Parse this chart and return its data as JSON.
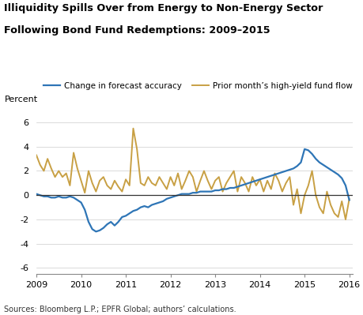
{
  "title_line1": "Illiquidity Spills Over from Energy to Non-Energy Sector",
  "title_line2": "Following Bond Fund Redemptions: 2009–2015",
  "ylabel": "Percent",
  "source": "Sources: Bloomberg L.P.; EPFR Global; authors’ calculations.",
  "legend": [
    "Change in forecast accuracy",
    "Prior month’s high-yield fund flow"
  ],
  "colors": [
    "#2e75b6",
    "#c8a044"
  ],
  "xlim": [
    2009.0,
    2016.08
  ],
  "ylim": [
    -6.5,
    7.0
  ],
  "yticks": [
    -6,
    -4,
    -2,
    0,
    2,
    4,
    6
  ],
  "xticks": [
    2009,
    2010,
    2011,
    2012,
    2013,
    2014,
    2015,
    2016
  ],
  "blue_x": [
    2009.0,
    2009.083,
    2009.167,
    2009.25,
    2009.333,
    2009.417,
    2009.5,
    2009.583,
    2009.667,
    2009.75,
    2009.833,
    2009.917,
    2010.0,
    2010.083,
    2010.167,
    2010.25,
    2010.333,
    2010.417,
    2010.5,
    2010.583,
    2010.667,
    2010.75,
    2010.833,
    2010.917,
    2011.0,
    2011.083,
    2011.167,
    2011.25,
    2011.333,
    2011.417,
    2011.5,
    2011.583,
    2011.667,
    2011.75,
    2011.833,
    2011.917,
    2012.0,
    2012.083,
    2012.167,
    2012.25,
    2012.333,
    2012.417,
    2012.5,
    2012.583,
    2012.667,
    2012.75,
    2012.833,
    2012.917,
    2013.0,
    2013.083,
    2013.167,
    2013.25,
    2013.333,
    2013.417,
    2013.5,
    2013.583,
    2013.667,
    2013.75,
    2013.833,
    2013.917,
    2014.0,
    2014.083,
    2014.167,
    2014.25,
    2014.333,
    2014.417,
    2014.5,
    2014.583,
    2014.667,
    2014.75,
    2014.833,
    2014.917,
    2015.0,
    2015.083,
    2015.167,
    2015.25,
    2015.333,
    2015.417,
    2015.5,
    2015.583,
    2015.667,
    2015.75,
    2015.833,
    2015.917,
    2016.0
  ],
  "blue_y": [
    0.1,
    0.0,
    -0.1,
    -0.1,
    -0.2,
    -0.2,
    -0.1,
    -0.2,
    -0.2,
    -0.1,
    -0.2,
    -0.4,
    -0.6,
    -1.2,
    -2.2,
    -2.8,
    -3.0,
    -2.9,
    -2.7,
    -2.4,
    -2.2,
    -2.5,
    -2.2,
    -1.8,
    -1.7,
    -1.5,
    -1.3,
    -1.2,
    -1.0,
    -0.9,
    -1.0,
    -0.8,
    -0.7,
    -0.6,
    -0.5,
    -0.3,
    -0.2,
    -0.1,
    0.0,
    0.1,
    0.1,
    0.1,
    0.2,
    0.2,
    0.3,
    0.3,
    0.3,
    0.3,
    0.4,
    0.4,
    0.5,
    0.5,
    0.6,
    0.6,
    0.7,
    0.8,
    0.9,
    1.0,
    1.1,
    1.2,
    1.3,
    1.4,
    1.5,
    1.6,
    1.7,
    1.8,
    1.9,
    2.0,
    2.1,
    2.2,
    2.4,
    2.7,
    3.8,
    3.7,
    3.4,
    3.0,
    2.7,
    2.5,
    2.3,
    2.1,
    1.9,
    1.7,
    1.4,
    0.8,
    -0.4
  ],
  "gold_x": [
    2009.0,
    2009.083,
    2009.167,
    2009.25,
    2009.333,
    2009.417,
    2009.5,
    2009.583,
    2009.667,
    2009.75,
    2009.833,
    2009.917,
    2010.0,
    2010.083,
    2010.167,
    2010.25,
    2010.333,
    2010.417,
    2010.5,
    2010.583,
    2010.667,
    2010.75,
    2010.833,
    2010.917,
    2011.0,
    2011.083,
    2011.167,
    2011.25,
    2011.333,
    2011.417,
    2011.5,
    2011.583,
    2011.667,
    2011.75,
    2011.833,
    2011.917,
    2012.0,
    2012.083,
    2012.167,
    2012.25,
    2012.333,
    2012.417,
    2012.5,
    2012.583,
    2012.667,
    2012.75,
    2012.833,
    2012.917,
    2013.0,
    2013.083,
    2013.167,
    2013.25,
    2013.333,
    2013.417,
    2013.5,
    2013.583,
    2013.667,
    2013.75,
    2013.833,
    2013.917,
    2014.0,
    2014.083,
    2014.167,
    2014.25,
    2014.333,
    2014.417,
    2014.5,
    2014.583,
    2014.667,
    2014.75,
    2014.833,
    2014.917,
    2015.0,
    2015.083,
    2015.167,
    2015.25,
    2015.333,
    2015.417,
    2015.5,
    2015.583,
    2015.667,
    2015.75,
    2015.833,
    2015.917,
    2016.0
  ],
  "gold_y": [
    3.3,
    2.5,
    2.0,
    3.0,
    2.2,
    1.5,
    2.0,
    1.5,
    1.8,
    0.8,
    3.5,
    2.2,
    1.2,
    0.2,
    2.0,
    1.0,
    0.3,
    1.2,
    1.5,
    0.8,
    0.5,
    1.2,
    0.7,
    0.3,
    1.3,
    0.8,
    5.5,
    3.8,
    1.0,
    0.8,
    1.5,
    1.0,
    0.8,
    1.5,
    1.0,
    0.5,
    1.5,
    0.8,
    1.8,
    0.5,
    1.2,
    2.0,
    1.5,
    0.3,
    1.2,
    2.0,
    1.2,
    0.5,
    1.2,
    1.5,
    0.3,
    1.0,
    1.5,
    2.0,
    0.3,
    1.5,
    1.0,
    0.3,
    1.5,
    0.8,
    1.3,
    0.3,
    1.2,
    0.5,
    1.8,
    1.2,
    0.3,
    1.0,
    1.5,
    -0.8,
    0.5,
    -1.5,
    0.0,
    0.8,
    2.0,
    0.0,
    -1.0,
    -1.5,
    0.3,
    -0.8,
    -1.5,
    -1.8,
    -0.5,
    -2.0,
    -0.3
  ]
}
